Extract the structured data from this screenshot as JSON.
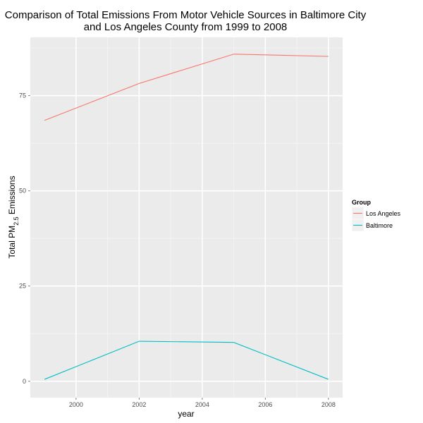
{
  "chart_data": {
    "type": "line",
    "title_lines": [
      "Comparison of Total Emissions From Motor Vehicle Sources in Baltimore City",
      "and Los Angeles County from 1999 to 2008"
    ],
    "xlabel": "year",
    "ylabel": {
      "prefix": "Total PM",
      "subscript": "2.5",
      "suffix": " Emissions"
    },
    "x_ticks": [
      2000,
      2002,
      2004,
      2006,
      2008
    ],
    "y_ticks": [
      0,
      25,
      50,
      75
    ],
    "xlim": [
      1998.55,
      2008.45
    ],
    "ylim": [
      -4.3,
      90.3
    ],
    "grid": true,
    "legend": {
      "title": "Group",
      "position": "right"
    },
    "series": [
      {
        "name": "Los Angeles",
        "color": "#F8766D",
        "x": [
          1999,
          2002,
          2005,
          2008
        ],
        "y": [
          68.5,
          78.2,
          85.9,
          85.3
        ]
      },
      {
        "name": "Baltimore",
        "color": "#00BFC4",
        "x": [
          1999,
          2002,
          2005,
          2008
        ],
        "y": [
          0.5,
          10.5,
          10.2,
          0.5
        ]
      }
    ]
  },
  "colors": {
    "panel_background": "#ebebeb",
    "grid_major": "#ffffff",
    "grid_minor": "#f5f5f5",
    "legend_key_background": "#f0f0f0"
  }
}
